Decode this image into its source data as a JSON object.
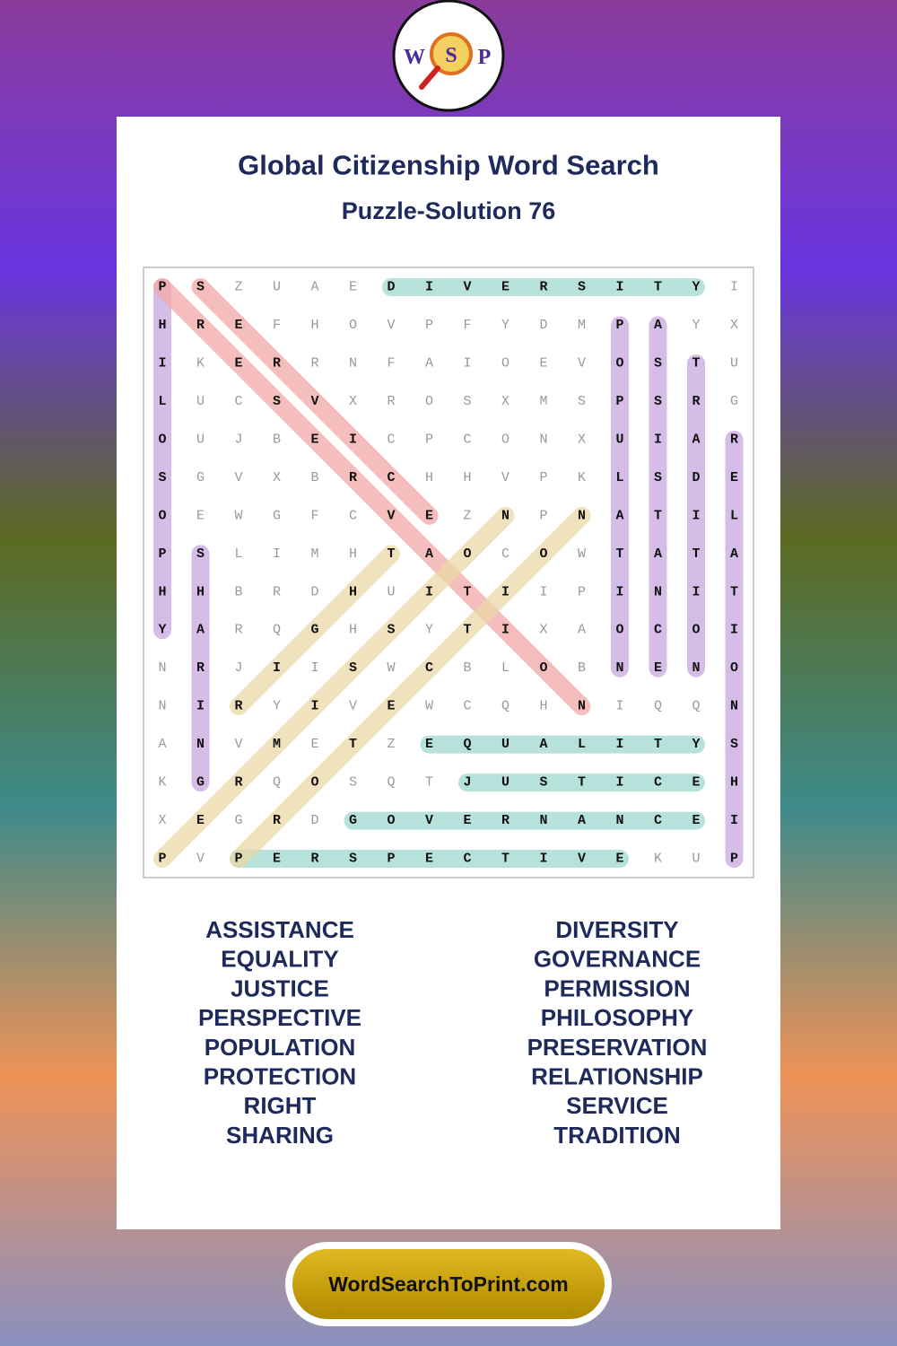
{
  "logo": {
    "letters": [
      "W",
      "S",
      "P"
    ]
  },
  "header": {
    "title": "Global Citizenship Word Search",
    "subtitle": "Puzzle-Solution 76"
  },
  "grid": {
    "rows": [
      "PSZUAEDIVERSITYI",
      "HREFHOVPFYDMPAYX",
      "IKERRNFAIOEVOSTU",
      "LUCSVXROSXMSPSRG",
      "OUJBEICPCONXUIAR",
      "SGVXBRCHHVPKLSDE",
      "OEWGFCVEZNPNATIL",
      "PSLIMHTAOCOWTATA",
      "HHBRDHUITIIPINIT",
      "YARQGHSYTIXAOCOI",
      "NRJIISWCBLOBNENO",
      "NIRYIVEWCQHNIQQN",
      "ANVMETZEQUALITYS",
      "KGRQOSQTJUSTICEH",
      "XEGRDGOVERNANCEI",
      "PVPERSPECTIVEKUP"
    ]
  },
  "words": {
    "left": [
      "ASSISTANCE",
      "EQUALITY",
      "JUSTICE",
      "PERSPECTIVE",
      "POPULATION",
      "PROTECTION",
      "RIGHT",
      "SHARING"
    ],
    "right": [
      "DIVERSITY",
      "GOVERNANCE",
      "PERMISSION",
      "PHILOSOPHY",
      "PRESERVATION",
      "RELATIONSHIP",
      "SERVICE",
      "TRADITION"
    ]
  },
  "footer": {
    "site": "WordSearchToPrint.com"
  }
}
